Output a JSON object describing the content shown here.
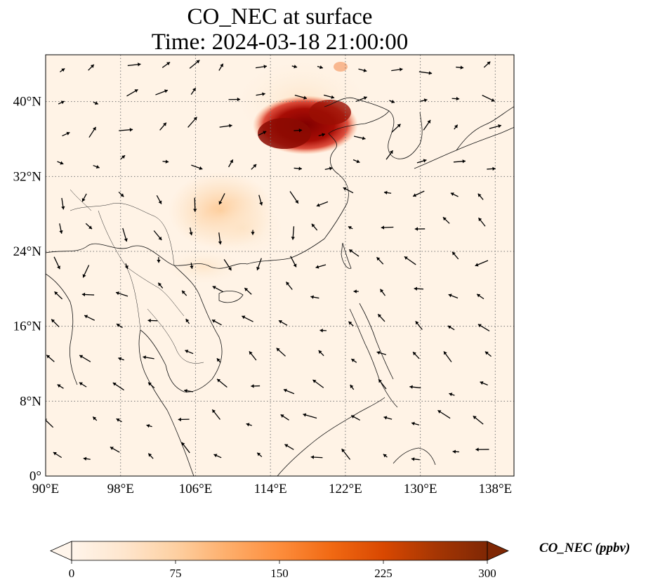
{
  "title": {
    "line1": "CO_NEC at surface",
    "line2": "Time: 2024-03-18 21:00:00"
  },
  "map": {
    "lon_range": [
      90,
      140
    ],
    "lat_range": [
      0,
      45
    ],
    "lon_ticks": [
      "90°E",
      "98°E",
      "106°E",
      "114°E",
      "122°E",
      "130°E",
      "138°E"
    ],
    "lat_ticks": [
      "0°",
      "8°N",
      "16°N",
      "24°N",
      "32°N",
      "40°N"
    ],
    "gridlines": true,
    "features": [
      "coastlines",
      "country borders",
      "wind vectors"
    ]
  },
  "colorbar": {
    "label": "CO_NEC (ppbv)",
    "ticks": [
      "0",
      "75",
      "150",
      "225",
      "300"
    ],
    "min": 0,
    "max": 300,
    "extend": "both",
    "colormap": [
      "#fff5eb",
      "#fee6ce",
      "#fdd0a2",
      "#fdae6b",
      "#fd8d3c",
      "#f16913",
      "#d94801",
      "#a63603",
      "#7f2704"
    ]
  },
  "plumes": [
    {
      "region": "North China Plain",
      "level": "high"
    },
    {
      "region": "South China",
      "level": "moderate"
    }
  ]
}
